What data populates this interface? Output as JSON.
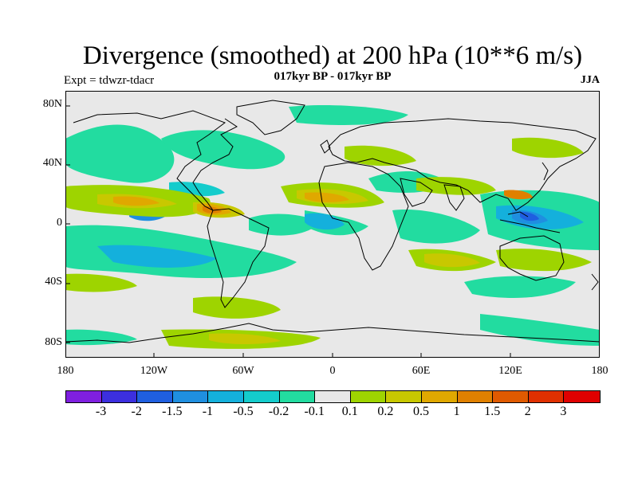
{
  "title": "Divergence (smoothed) at 200 hPa (10**6 m/s)",
  "subtitle": "017kyr BP - 017kyr BP",
  "left_label": "Expt = tdwzr-tdacr",
  "right_label": "JJA",
  "lat_labels": [
    "80N",
    "40N",
    "0",
    "40S",
    "80S"
  ],
  "lon_labels": [
    "180",
    "120W",
    "60W",
    "0",
    "60E",
    "120E",
    "180"
  ],
  "colorbar": {
    "colors": [
      "#7f1fe0",
      "#3c2fdf",
      "#1f5fe0",
      "#1f8fe0",
      "#14b0dc",
      "#14cccc",
      "#22dca0",
      "#e8e8e8",
      "#9ed400",
      "#c8c800",
      "#e0a800",
      "#e08000",
      "#e05a00",
      "#e03000",
      "#e00000"
    ],
    "labels": [
      "-3",
      "-2",
      "-1.5",
      "-1",
      "-0.5",
      "-0.2",
      "-0.1",
      "0.1",
      "0.2",
      "0.5",
      "1",
      "1.5",
      "2",
      "3"
    ]
  }
}
